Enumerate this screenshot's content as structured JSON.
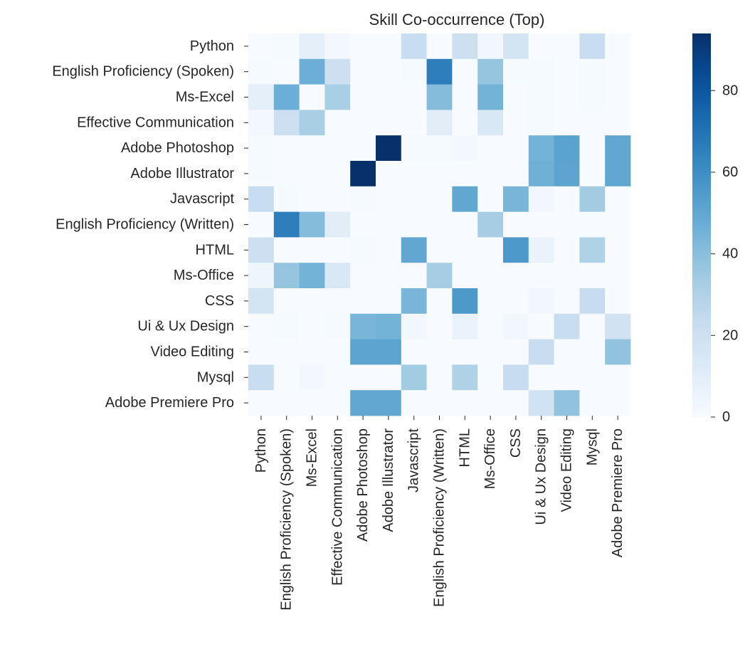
{
  "chart_data": {
    "type": "heatmap",
    "title": "Skill Co-occurrence (Top)",
    "xlabel": "",
    "ylabel": "",
    "colormap": "Blues",
    "color_low": "#f7fbff",
    "color_high": "#08306b",
    "vmin": 0,
    "vmax": 94,
    "colorbar_ticks": [
      0,
      20,
      40,
      60,
      80
    ],
    "rows": [
      "Python",
      "English Proficiency (Spoken)",
      "Ms-Excel",
      "Effective Communication",
      "Adobe Photoshop",
      "Adobe Illustrator",
      "Javascript",
      "English Proficiency (Written)",
      "HTML",
      "Ms-Office",
      "CSS",
      "Ui & Ux Design",
      "Video Editing",
      "Mysql",
      "Adobe Premiere Pro"
    ],
    "columns": [
      "Python",
      "English Proficiency (Spoken)",
      "Ms-Excel",
      "Effective Communication",
      "Adobe Photoshop",
      "Adobe Illustrator",
      "Javascript",
      "English Proficiency (Written)",
      "HTML",
      "Ms-Office",
      "CSS",
      "Ui & Ux Design",
      "Video Editing",
      "Mysql",
      "Adobe Premiere Pro"
    ],
    "values": [
      [
        0,
        1,
        9,
        2,
        0,
        0,
        22,
        0,
        20,
        3,
        17,
        0,
        0,
        22,
        0
      ],
      [
        1,
        0,
        47,
        20,
        0,
        0,
        1,
        66,
        0,
        37,
        1,
        1,
        0,
        1,
        0
      ],
      [
        9,
        47,
        0,
        32,
        0,
        0,
        0,
        41,
        0,
        45,
        0,
        1,
        0,
        1,
        0
      ],
      [
        2,
        20,
        32,
        0,
        0,
        0,
        0,
        10,
        0,
        14,
        0,
        1,
        0,
        0,
        0
      ],
      [
        1,
        0,
        0,
        0,
        0,
        94,
        1,
        1,
        2,
        0,
        0,
        45,
        52,
        0,
        50
      ],
      [
        1,
        0,
        0,
        0,
        94,
        0,
        0,
        0,
        0,
        0,
        0,
        46,
        51,
        0,
        50
      ],
      [
        22,
        1,
        0,
        0,
        1,
        0,
        0,
        0,
        50,
        0,
        44,
        3,
        0,
        34,
        0
      ],
      [
        0,
        66,
        41,
        10,
        0,
        0,
        0,
        0,
        0,
        33,
        0,
        0,
        0,
        0,
        0
      ],
      [
        20,
        0,
        0,
        0,
        1,
        0,
        50,
        0,
        0,
        0,
        56,
        6,
        0,
        30,
        0
      ],
      [
        4,
        37,
        45,
        14,
        0,
        0,
        0,
        33,
        0,
        0,
        0,
        0,
        0,
        0,
        0
      ],
      [
        17,
        0,
        0,
        0,
        0,
        0,
        44,
        0,
        56,
        0,
        0,
        3,
        0,
        23,
        0
      ],
      [
        0,
        1,
        0,
        1,
        44,
        45,
        3,
        0,
        6,
        0,
        3,
        0,
        22,
        0,
        18
      ],
      [
        0,
        0,
        0,
        0,
        51,
        51,
        0,
        0,
        0,
        0,
        0,
        22,
        0,
        0,
        38
      ],
      [
        22,
        0,
        2,
        0,
        0,
        0,
        34,
        0,
        30,
        0,
        23,
        0,
        0,
        0,
        0
      ],
      [
        0,
        0,
        0,
        0,
        50,
        50,
        0,
        0,
        0,
        0,
        0,
        18,
        38,
        0,
        0
      ]
    ]
  }
}
